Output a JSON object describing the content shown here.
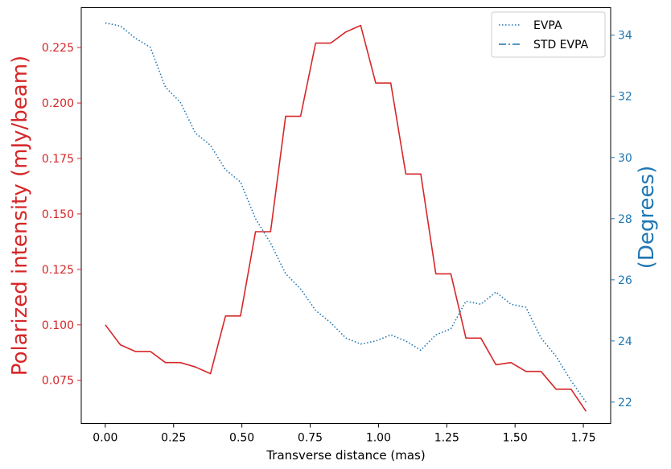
{
  "colors": {
    "left_axis": "#d62728",
    "right_axis": "#1f77b4",
    "frame": "#000000",
    "legend_border": "#cccccc"
  },
  "chart_data": {
    "type": "line",
    "xlabel": "Transverse distance (mas)",
    "ylabel_left": "Polarized intensity (mJy/beam)",
    "ylabel_right": "(Degrees)",
    "xlim": [
      -0.088,
      1.85
    ],
    "ylim_left": [
      0.0555,
      0.243
    ],
    "ylim_right": [
      21.3,
      34.9
    ],
    "x_ticks": [
      0.0,
      0.25,
      0.5,
      0.75,
      1.0,
      1.25,
      1.5,
      1.75
    ],
    "x_tick_labels": [
      "0.00",
      "0.25",
      "0.50",
      "0.75",
      "1.00",
      "1.25",
      "1.50",
      "1.75"
    ],
    "yleft_ticks": [
      0.075,
      0.1,
      0.125,
      0.15,
      0.175,
      0.2,
      0.225
    ],
    "yleft_tick_labels": [
      "0.075",
      "0.100",
      "0.125",
      "0.150",
      "0.175",
      "0.200",
      "0.225"
    ],
    "yright_ticks": [
      22,
      24,
      26,
      28,
      30,
      32,
      34
    ],
    "yright_tick_labels": [
      "22",
      "24",
      "26",
      "28",
      "30",
      "32",
      "34"
    ],
    "grid": false,
    "legend": {
      "placement": "top-right",
      "entries": [
        {
          "label": "EVPA",
          "style": "dotted"
        },
        {
          "label": "STD EVPA",
          "style": "dashdot"
        }
      ]
    },
    "series": [
      {
        "axis": "left",
        "style": "solid",
        "x": [
          0.0,
          0.055,
          0.11,
          0.165,
          0.22,
          0.275,
          0.33,
          0.385,
          0.44,
          0.495,
          0.55,
          0.605,
          0.66,
          0.715,
          0.77,
          0.825,
          0.88,
          0.935,
          0.99,
          1.045,
          1.1,
          1.155,
          1.21,
          1.265,
          1.32,
          1.375,
          1.43,
          1.485,
          1.54,
          1.595,
          1.65,
          1.705,
          1.76
        ],
        "values": [
          0.1,
          0.091,
          0.088,
          0.088,
          0.083,
          0.083,
          0.081,
          0.078,
          0.104,
          0.104,
          0.142,
          0.142,
          0.194,
          0.194,
          0.227,
          0.227,
          0.232,
          0.235,
          0.209,
          0.209,
          0.168,
          0.168,
          0.123,
          0.123,
          0.094,
          0.094,
          0.082,
          0.083,
          0.079,
          0.079,
          0.071,
          0.071,
          0.061
        ]
      },
      {
        "name": "EVPA",
        "axis": "right",
        "style": "dotted",
        "x": [
          0.0,
          0.055,
          0.11,
          0.165,
          0.22,
          0.275,
          0.33,
          0.385,
          0.44,
          0.495,
          0.55,
          0.605,
          0.66,
          0.715,
          0.77,
          0.825,
          0.88,
          0.935,
          0.99,
          1.045,
          1.1,
          1.155,
          1.21,
          1.265,
          1.32,
          1.375,
          1.43,
          1.485,
          1.54,
          1.595,
          1.65,
          1.705,
          1.76
        ],
        "values": [
          34.4,
          34.3,
          33.9,
          33.6,
          32.3,
          31.8,
          30.8,
          30.4,
          29.6,
          29.2,
          28.0,
          27.2,
          26.2,
          25.7,
          25.0,
          24.6,
          24.1,
          23.9,
          24.0,
          24.2,
          24.0,
          23.7,
          24.2,
          24.4,
          25.3,
          25.2,
          25.6,
          25.2,
          25.1,
          24.1,
          23.5,
          22.7,
          22.0
        ]
      }
    ]
  }
}
